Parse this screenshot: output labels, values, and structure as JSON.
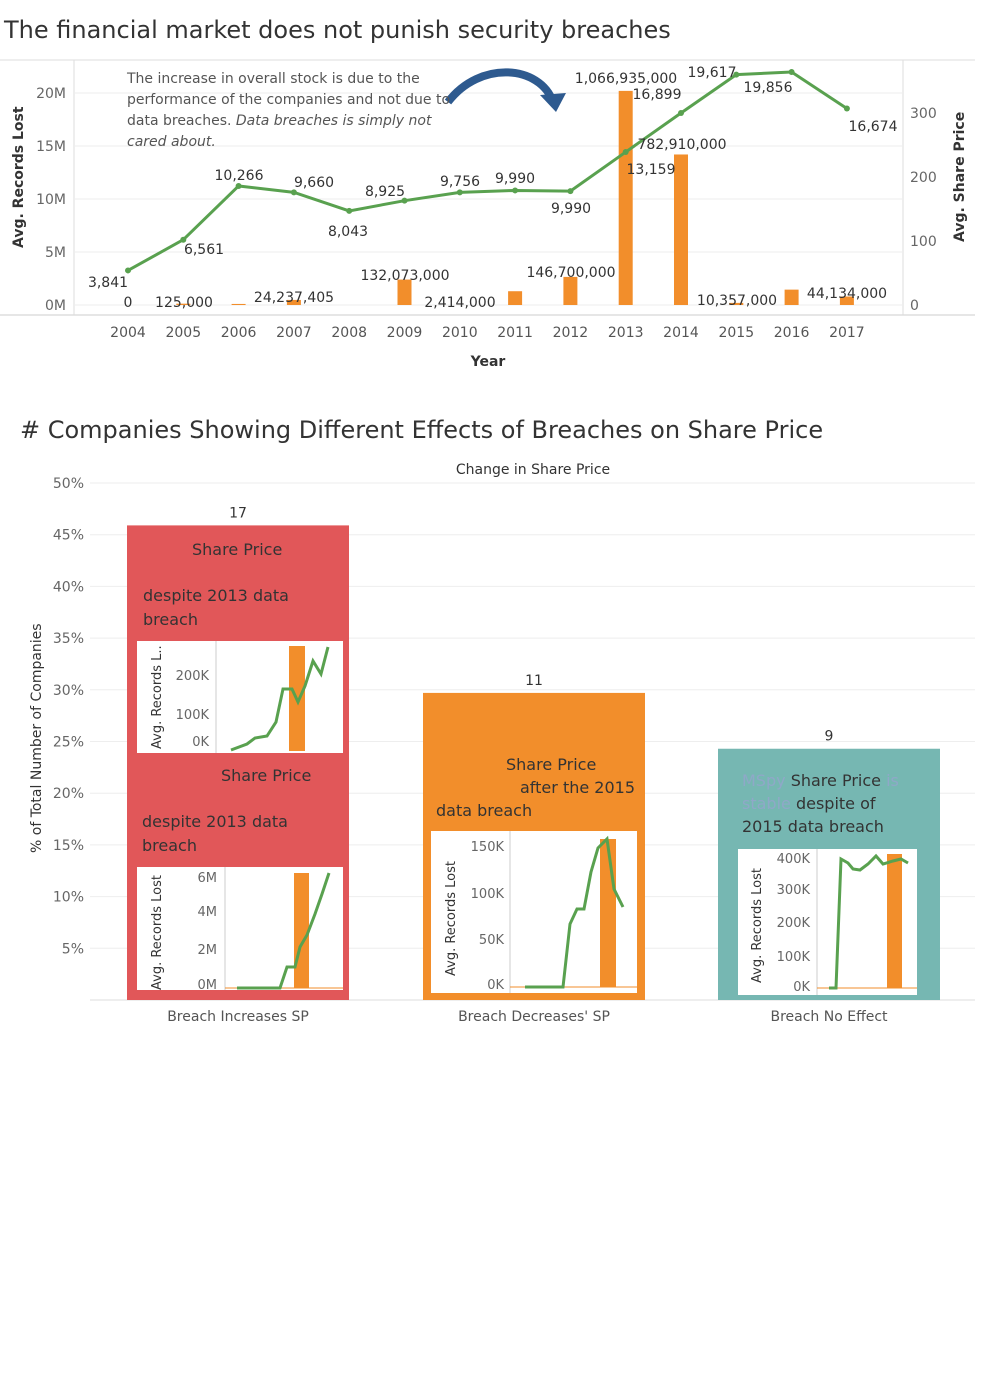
{
  "chart_data": [
    {
      "type": "bar+line",
      "title": "The financial market does not punish security breaches",
      "xlabel": "Year",
      "ylabel_left": "Avg. Records Lost",
      "ylabel_right": "Avg. Share Price",
      "left_ticks": [
        "0M",
        "5M",
        "10M",
        "15M",
        "20M"
      ],
      "right_ticks": [
        "0",
        "100",
        "200",
        "300"
      ],
      "ylim_left": [
        0,
        20000000
      ],
      "ylim_right": [
        0,
        300
      ],
      "grid": true,
      "categories": [
        "2004",
        "2005",
        "2006",
        "2007",
        "2008",
        "2009",
        "2010",
        "2011",
        "2012",
        "2013",
        "2014",
        "2015",
        "2016",
        "2017"
      ],
      "series": [
        {
          "name": "Avg. Records Lost",
          "kind": "bar",
          "color": "#f28e2b",
          "values": [
            0,
            125000,
            100000,
            480000,
            0,
            2400000,
            0,
            1300000,
            2650000,
            20200000,
            14200000,
            200000,
            1450000,
            800000
          ],
          "labels": [
            "0",
            "125,000",
            "",
            "24,237,405",
            "",
            "132,073,000",
            "2,414,000",
            "",
            "146,700,000",
            "1,066,935,000",
            "782,910,000",
            "10,357,000",
            "",
            "44,134,000"
          ]
        },
        {
          "name": "Avg. Share Price",
          "kind": "line",
          "color": "#59a14f",
          "values": [
            54,
            102,
            186,
            176,
            147,
            163,
            176,
            179,
            178,
            239,
            300,
            360,
            364,
            307
          ],
          "labels": [
            "3,841",
            "6,561",
            "10,266",
            "9,660",
            "8,043",
            "8,925",
            "9,756",
            "9,990",
            "9,990",
            "13,159",
            "16,899",
            "19,617",
            "19,856",
            "16,674"
          ]
        }
      ],
      "annotation": {
        "text": "The increase in overall stock is due to the performance of the companies and not due to data breaches.",
        "italic": "Data breaches is simply not cared about."
      }
    },
    {
      "type": "bar",
      "title": "# Companies Showing Different Effects of Breaches on Share Price",
      "subtitle": "Change in Share Price",
      "ylabel": "% of Total Number of Companies",
      "ylim": [
        0,
        50
      ],
      "ticks": [
        "5%",
        "10%",
        "15%",
        "20%",
        "25%",
        "30%",
        "35%",
        "40%",
        "45%",
        "50%"
      ],
      "categories": [
        "Breach Increases SP",
        "Breach Decreases' SP",
        "Breach No Effect"
      ],
      "values": [
        45.9,
        29.7,
        24.3
      ],
      "counts": [
        "17",
        "11",
        "9"
      ],
      "colors": [
        "#e15759",
        "#f28e2b",
        "#76b7b2"
      ]
    }
  ],
  "panels": {
    "inc_a": {
      "l1": "Share Price",
      "l2": "despite 2013 data",
      "l3": "breach",
      "ylabel": "Avg. Records L..",
      "ticks": [
        "200K",
        "100K",
        "0K"
      ]
    },
    "inc_b": {
      "l1": "Share Price",
      "l2": "despite 2013 data",
      "l3": "breach",
      "ylabel": "Avg. Records Lost",
      "ticks": [
        "6M",
        "4M",
        "2M",
        "0M"
      ]
    },
    "dec": {
      "l1": "Share Price",
      "l2": "after the 2015",
      "l3": "data breach",
      "ylabel": "Avg. Records Lost",
      "ticks": [
        "150K",
        "100K",
        "50K",
        "0K"
      ]
    },
    "noeff": {
      "faint1": "MSpy",
      "l1": "Share Price",
      "faint2": "is",
      "faint3": "stable",
      "l2": "despite of",
      "l3": "2015 data breach",
      "ylabel": "Avg. Records Lost",
      "ticks": [
        "400K",
        "300K",
        "200K",
        "100K",
        "0K"
      ]
    }
  }
}
